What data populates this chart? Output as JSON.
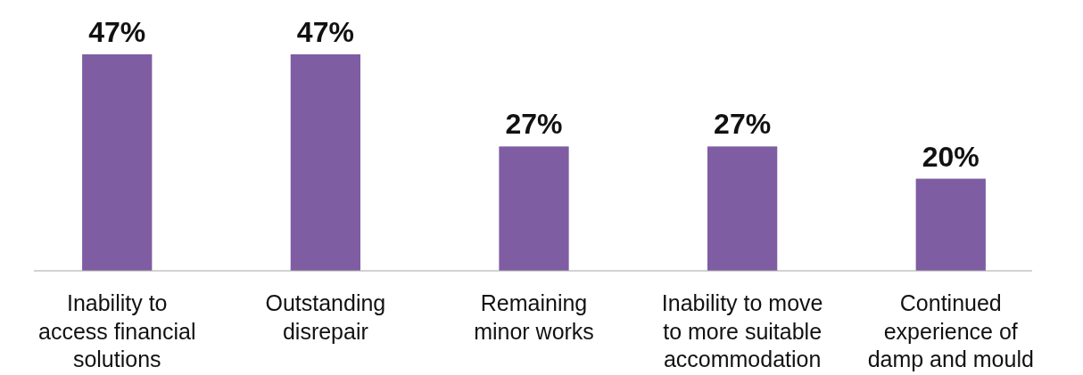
{
  "chart_data": {
    "type": "bar",
    "categories": [
      "Inability to\naccess financial\nsolutions",
      "Outstanding\ndisrepair",
      "Remaining\nminor works",
      "Inability to move\nto more suitable\naccommodation",
      "Continued\nexperience of\ndamp and mould"
    ],
    "values": [
      47,
      47,
      27,
      27,
      20
    ],
    "value_labels": [
      "47%",
      "47%",
      "27%",
      "27%",
      "20%"
    ],
    "color": "#7f5da3"
  }
}
